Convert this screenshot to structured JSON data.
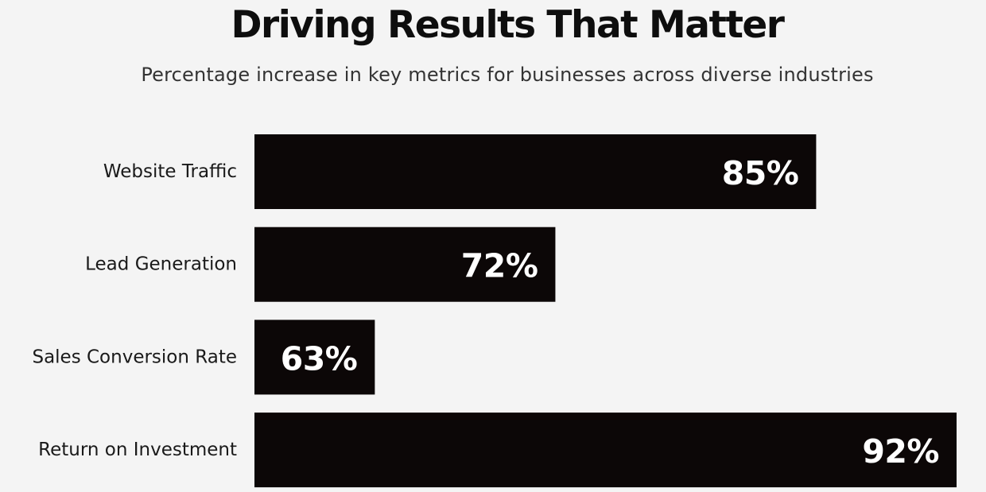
{
  "chart_data": {
    "type": "bar",
    "orientation": "horizontal",
    "title": "Driving Results That Matter",
    "subtitle": "Percentage increase in key metrics for businesses across diverse industries",
    "categories": [
      "Website Traffic",
      "Lead Generation",
      "Sales Conversion Rate",
      "Return on Investment"
    ],
    "values": [
      85,
      72,
      63,
      92
    ],
    "value_labels": [
      "85%",
      "72%",
      "63%",
      "92%"
    ],
    "value_unit": "%",
    "xlim": [
      57,
      92
    ],
    "xlabel": "",
    "ylabel": "",
    "grid": false,
    "legend": "none",
    "colors": {
      "background": "#f4f4f4",
      "bar": "#0c0707",
      "value_text": "#ffffff",
      "title": "#0e0e0e",
      "subtitle": "#333333",
      "category_text": "#1a1a1a"
    }
  }
}
